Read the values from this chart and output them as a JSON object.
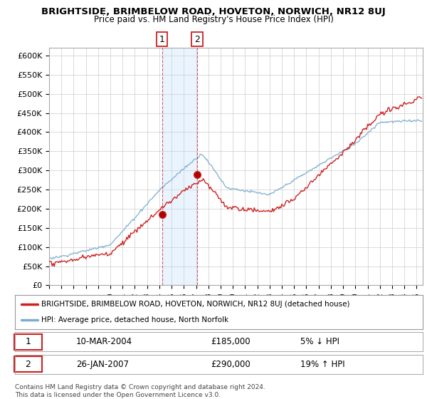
{
  "title": "BRIGHTSIDE, BRIMBELOW ROAD, HOVETON, NORWICH, NR12 8UJ",
  "subtitle": "Price paid vs. HM Land Registry's House Price Index (HPI)",
  "ylabel_ticks": [
    "£0",
    "£50K",
    "£100K",
    "£150K",
    "£200K",
    "£250K",
    "£300K",
    "£350K",
    "£400K",
    "£450K",
    "£500K",
    "£550K",
    "£600K"
  ],
  "ytick_values": [
    0,
    50000,
    100000,
    150000,
    200000,
    250000,
    300000,
    350000,
    400000,
    450000,
    500000,
    550000,
    600000
  ],
  "ylim": [
    0,
    620000
  ],
  "hpi_color": "#7aadcf",
  "price_color": "#cc2222",
  "marker1_t": 2004.21,
  "marker1_price": 185000,
  "marker2_t": 2007.08,
  "marker2_price": 290000,
  "span_color": "#ddeeff",
  "span_alpha": 0.6,
  "legend_line1": "BRIGHTSIDE, BRIMBELOW ROAD, HOVETON, NORWICH, NR12 8UJ (detached house)",
  "legend_line2": "HPI: Average price, detached house, North Norfolk",
  "table_row1_num": "1",
  "table_row1_date": "10-MAR-2004",
  "table_row1_price": "£185,000",
  "table_row1_info": "5% ↓ HPI",
  "table_row2_num": "2",
  "table_row2_date": "26-JAN-2007",
  "table_row2_price": "£290,000",
  "table_row2_info": "19% ↑ HPI",
  "footer": "Contains HM Land Registry data © Crown copyright and database right 2024.\nThis data is licensed under the Open Government Licence v3.0.",
  "background_color": "#ffffff",
  "grid_color": "#cccccc"
}
